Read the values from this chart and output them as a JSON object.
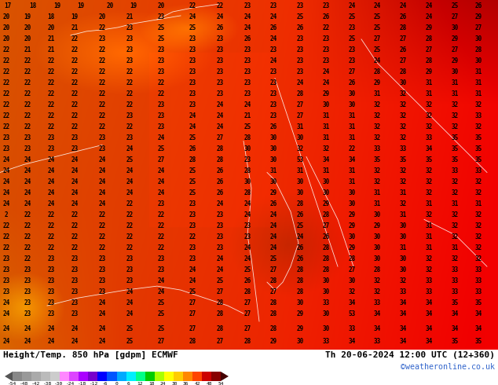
{
  "title_left": "Height/Temp. 850 hPa [gdpm] ECMWF",
  "title_right": "Th 20-06-2024 12:00 UTC (12+360)",
  "subtitle_right": "©weatheronline.co.uk",
  "colorbar_tick_labels": [
    "-54",
    "-48",
    "-42",
    "-38",
    "-30",
    "-24",
    "-18",
    "-12",
    "-6",
    "0",
    "6",
    "12",
    "18",
    "24",
    "30",
    "36",
    "42",
    "48",
    "54"
  ],
  "colorbar_colors": [
    "#888888",
    "#999999",
    "#aaaaaa",
    "#bbbbbb",
    "#cccccc",
    "#ff88ff",
    "#dd44ff",
    "#aa00ff",
    "#7700cc",
    "#0000ff",
    "#0055ff",
    "#00aaff",
    "#00eeff",
    "#00ff88",
    "#00cc00",
    "#aaff00",
    "#ffff00",
    "#ffcc00",
    "#ff8800",
    "#ff4400",
    "#cc0000",
    "#880000"
  ],
  "fig_width": 6.34,
  "fig_height": 4.9,
  "dpi": 100,
  "footer_bg": "#ffffff",
  "website_color": "#3366cc",
  "text_color": "#000000",
  "map_labels_color": "#000000",
  "map_labels_color_light": "#ffffff"
}
